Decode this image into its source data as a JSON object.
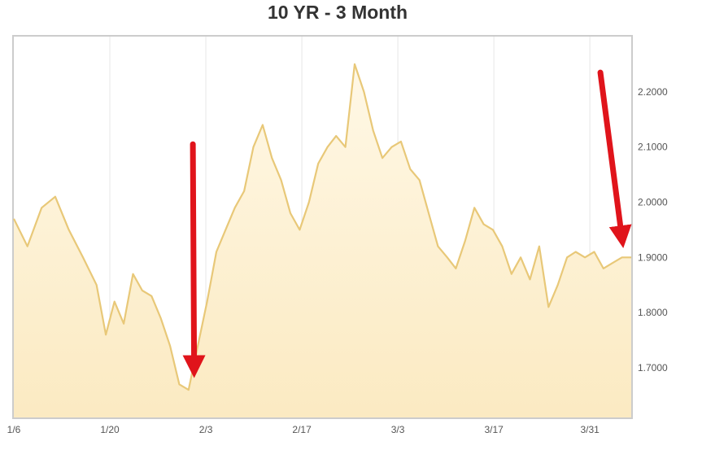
{
  "chart_data": {
    "type": "area",
    "title": "10 YR - 3 Month",
    "x_ticks": [
      "1/6",
      "1/20",
      "2/3",
      "2/17",
      "3/3",
      "3/17",
      "3/31"
    ],
    "y_ticks": [
      "1.7000",
      "1.8000",
      "1.9000",
      "2.0000",
      "2.1000",
      "2.2000"
    ],
    "ylim": [
      1.61,
      2.3
    ],
    "grid": "vertical",
    "series": [
      {
        "x": [
          0.0,
          0.022,
          0.045,
          0.067,
          0.089,
          0.112,
          0.134,
          0.149,
          0.163,
          0.178,
          0.193,
          0.208,
          0.223,
          0.238,
          0.253,
          0.268,
          0.283,
          0.298,
          0.313,
          0.328,
          0.343,
          0.358,
          0.373,
          0.388,
          0.403,
          0.418,
          0.433,
          0.448,
          0.463,
          0.478,
          0.493,
          0.508,
          0.522,
          0.537,
          0.552,
          0.567,
          0.582,
          0.597,
          0.612,
          0.627,
          0.642,
          0.657,
          0.672,
          0.687,
          0.702,
          0.716,
          0.731,
          0.746,
          0.761,
          0.776,
          0.791,
          0.806,
          0.821,
          0.836,
          0.851,
          0.866,
          0.881,
          0.896,
          0.91,
          0.925,
          0.94,
          0.955,
          0.97,
          0.985,
          1.0
        ],
        "y": [
          1.97,
          1.92,
          1.99,
          2.01,
          1.95,
          1.9,
          1.85,
          1.76,
          1.82,
          1.78,
          1.87,
          1.84,
          1.83,
          1.79,
          1.74,
          1.67,
          1.66,
          1.74,
          1.82,
          1.91,
          1.95,
          1.99,
          2.02,
          2.1,
          2.14,
          2.08,
          2.04,
          1.98,
          1.95,
          2.0,
          2.07,
          2.1,
          2.12,
          2.1,
          2.25,
          2.2,
          2.13,
          2.08,
          2.1,
          2.11,
          2.06,
          2.04,
          1.98,
          1.92,
          1.9,
          1.88,
          1.93,
          1.99,
          1.96,
          1.95,
          1.92,
          1.87,
          1.9,
          1.86,
          1.92,
          1.81,
          1.85,
          1.9,
          1.91,
          1.9,
          1.91,
          1.88,
          1.89,
          1.9,
          1.9
        ]
      }
    ],
    "colors": {
      "line": "#e8c878",
      "fill_top": "#fff8e6",
      "fill_bottom": "#fbeac2",
      "grid": "#e6e6e6",
      "frame": "#cccccc",
      "arrow": "#e0141b"
    },
    "annotations": [
      {
        "type": "arrow",
        "from": [
          0.29,
          2.105
        ],
        "to": [
          0.292,
          1.7
        ]
      },
      {
        "type": "arrow",
        "from": [
          0.95,
          2.235
        ],
        "to": [
          0.985,
          1.935
        ]
      }
    ]
  }
}
